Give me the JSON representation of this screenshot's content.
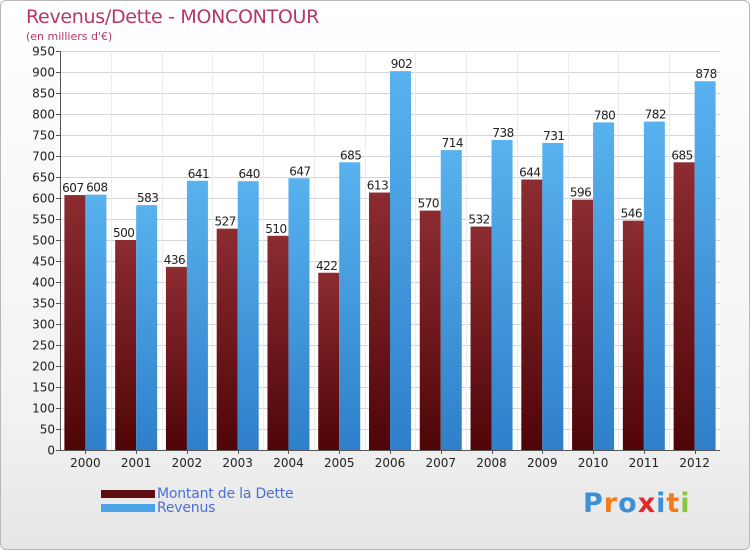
{
  "header": {
    "title": "Revenus/Dette - MONCONTOUR",
    "subtitle": "(en milliers d'€)"
  },
  "chart_data": {
    "type": "bar",
    "title": "Revenus/Dette - MONCONTOUR",
    "ylabel": "(en milliers d'€)",
    "xlabel": "",
    "ylim": [
      0,
      950
    ],
    "ytick_step": 50,
    "grid": true,
    "categories": [
      "2000",
      "2001",
      "2002",
      "2003",
      "2004",
      "2005",
      "2006",
      "2007",
      "2008",
      "2009",
      "2010",
      "2011",
      "2012"
    ],
    "series": [
      {
        "name": "Montant de la Dette",
        "color": "#7a1e24",
        "values": [
          607,
          500,
          436,
          527,
          510,
          422,
          613,
          570,
          532,
          644,
          596,
          546,
          685
        ]
      },
      {
        "name": "Revenus",
        "color": "#4aa3e6",
        "values": [
          608,
          583,
          641,
          640,
          647,
          685,
          902,
          714,
          738,
          731,
          780,
          782,
          878
        ]
      }
    ],
    "legend_position": "bottom-left"
  },
  "legend": {
    "debt_label": "Montant de la Dette",
    "revenue_label": "Revenus",
    "debt_color": "#5e0d12",
    "revenue_color": "#4aa3e6"
  },
  "logo": {
    "letters": [
      "P",
      "r",
      "o",
      "x",
      "i",
      "t",
      "i"
    ],
    "colors": [
      "#3d8fd6",
      "#f07c1e",
      "#3d8fd6",
      "#e8262a",
      "#3d8fd6",
      "#f07c1e",
      "#8bc43f"
    ]
  }
}
